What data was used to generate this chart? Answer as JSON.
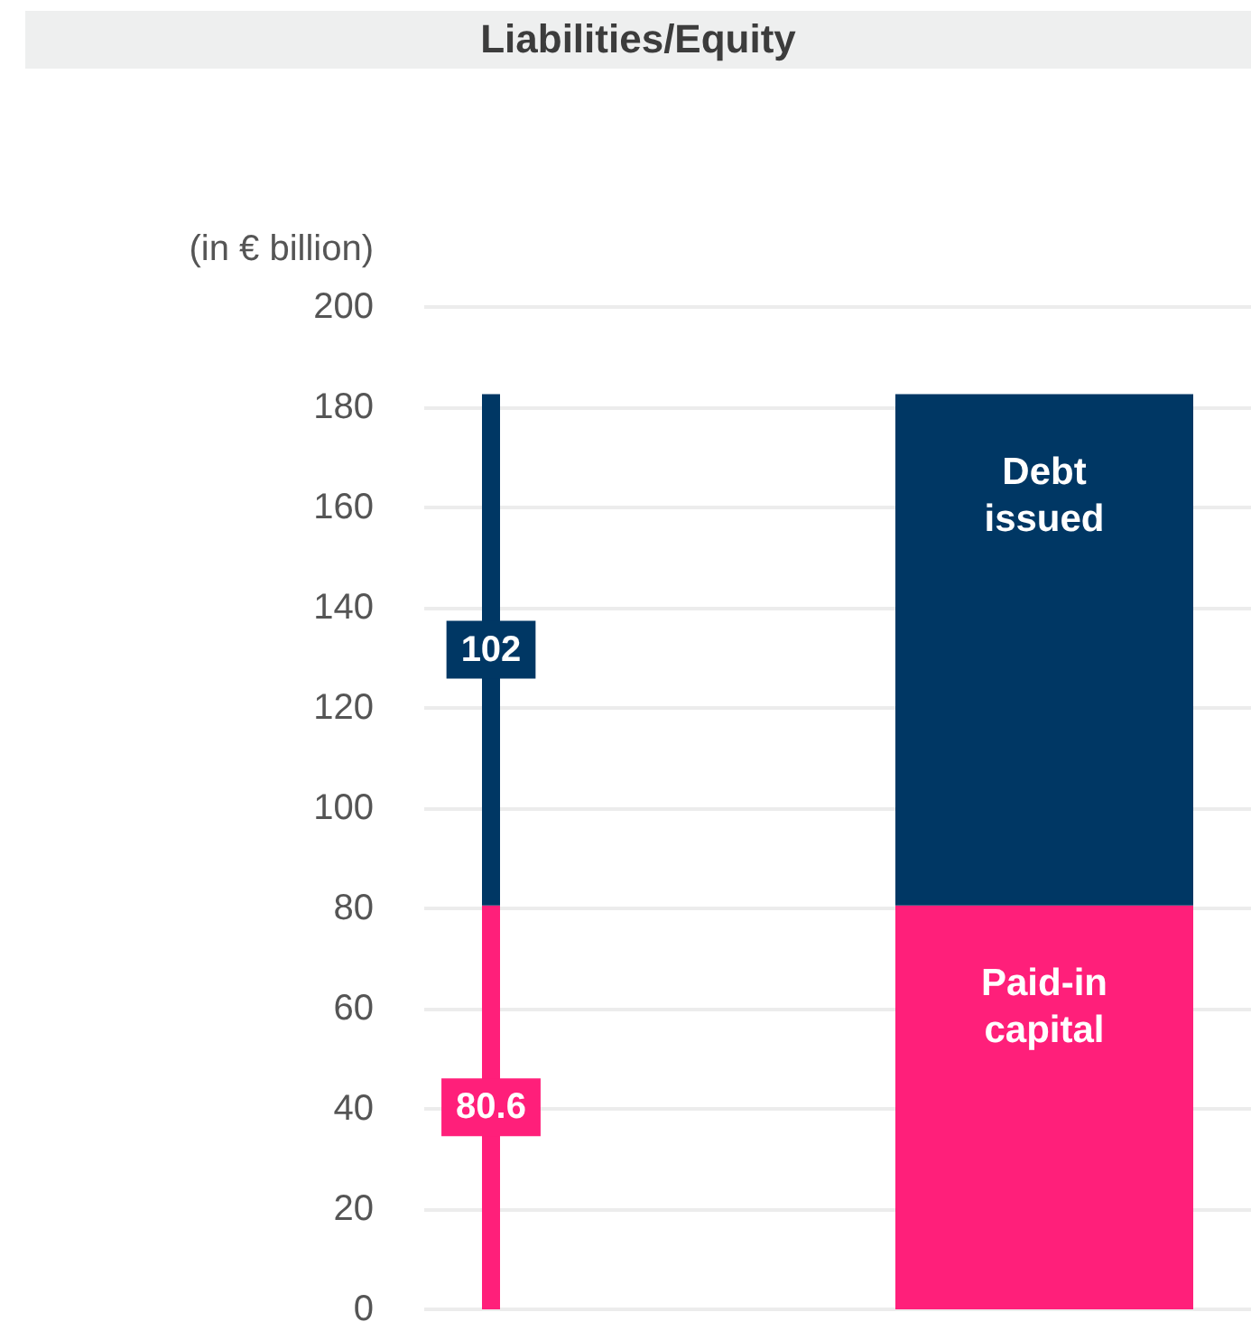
{
  "chart_data": {
    "type": "bar",
    "stacked": true,
    "title": "Liabilities/Equity",
    "ylabel": "(in € billion)",
    "categories": [
      null,
      null
    ],
    "series": [
      {
        "name": "Paid-in capital",
        "color": "#ff1f7a",
        "values": [
          80.6,
          80.6
        ],
        "value_labels": [
          "80.6",
          null
        ]
      },
      {
        "name": "Debt issued",
        "color": "#003764",
        "values": [
          102,
          102
        ],
        "value_labels": [
          "102",
          null
        ]
      }
    ],
    "ylim": [
      0,
      200
    ],
    "yticks": [
      0,
      20,
      40,
      60,
      80,
      100,
      120,
      140,
      160,
      180,
      200
    ],
    "grid": "y"
  }
}
